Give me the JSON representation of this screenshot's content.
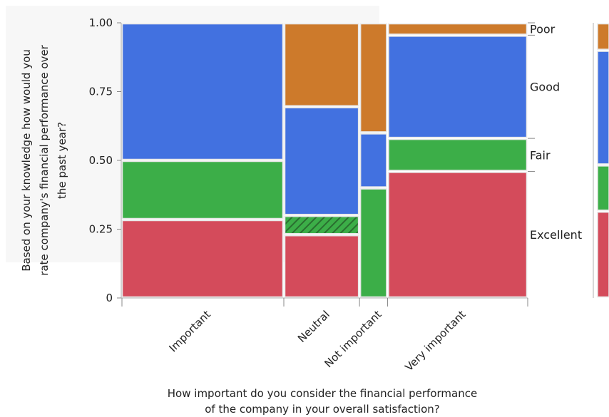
{
  "chart_data": {
    "type": "mosaic",
    "xlabel_lines": [
      "How important do you consider the financial performance",
      "of the company in your overall satisfaction?"
    ],
    "ylabel_lines": [
      "Based on your knowledge how would you",
      "rate company's financial performance over",
      "the past year?"
    ],
    "y_ticks": [
      "0",
      "0.25",
      "0.50",
      "0.75",
      "1.00"
    ],
    "ylim": [
      0,
      1
    ],
    "categories": [
      "Important",
      "Neutral",
      "Not important",
      "Very important"
    ],
    "category_widths": [
      0.58,
      0.27,
      0.1,
      0.5
    ],
    "series": [
      {
        "name": "Excellent",
        "color": "#d44b5b",
        "values": [
          0.285,
          0.23,
          0.0,
          0.46
        ]
      },
      {
        "name": "Fair",
        "color": "#3cae48",
        "values": [
          0.215,
          0.07,
          0.4,
          0.12
        ]
      },
      {
        "name": "Good",
        "color": "#4271e0",
        "values": [
          0.5,
          0.395,
          0.2,
          0.375
        ]
      },
      {
        "name": "Poor",
        "color": "#cd7a2b",
        "values": [
          0.0,
          0.305,
          0.4,
          0.045
        ]
      }
    ],
    "legend_position": "right",
    "grid": false
  }
}
